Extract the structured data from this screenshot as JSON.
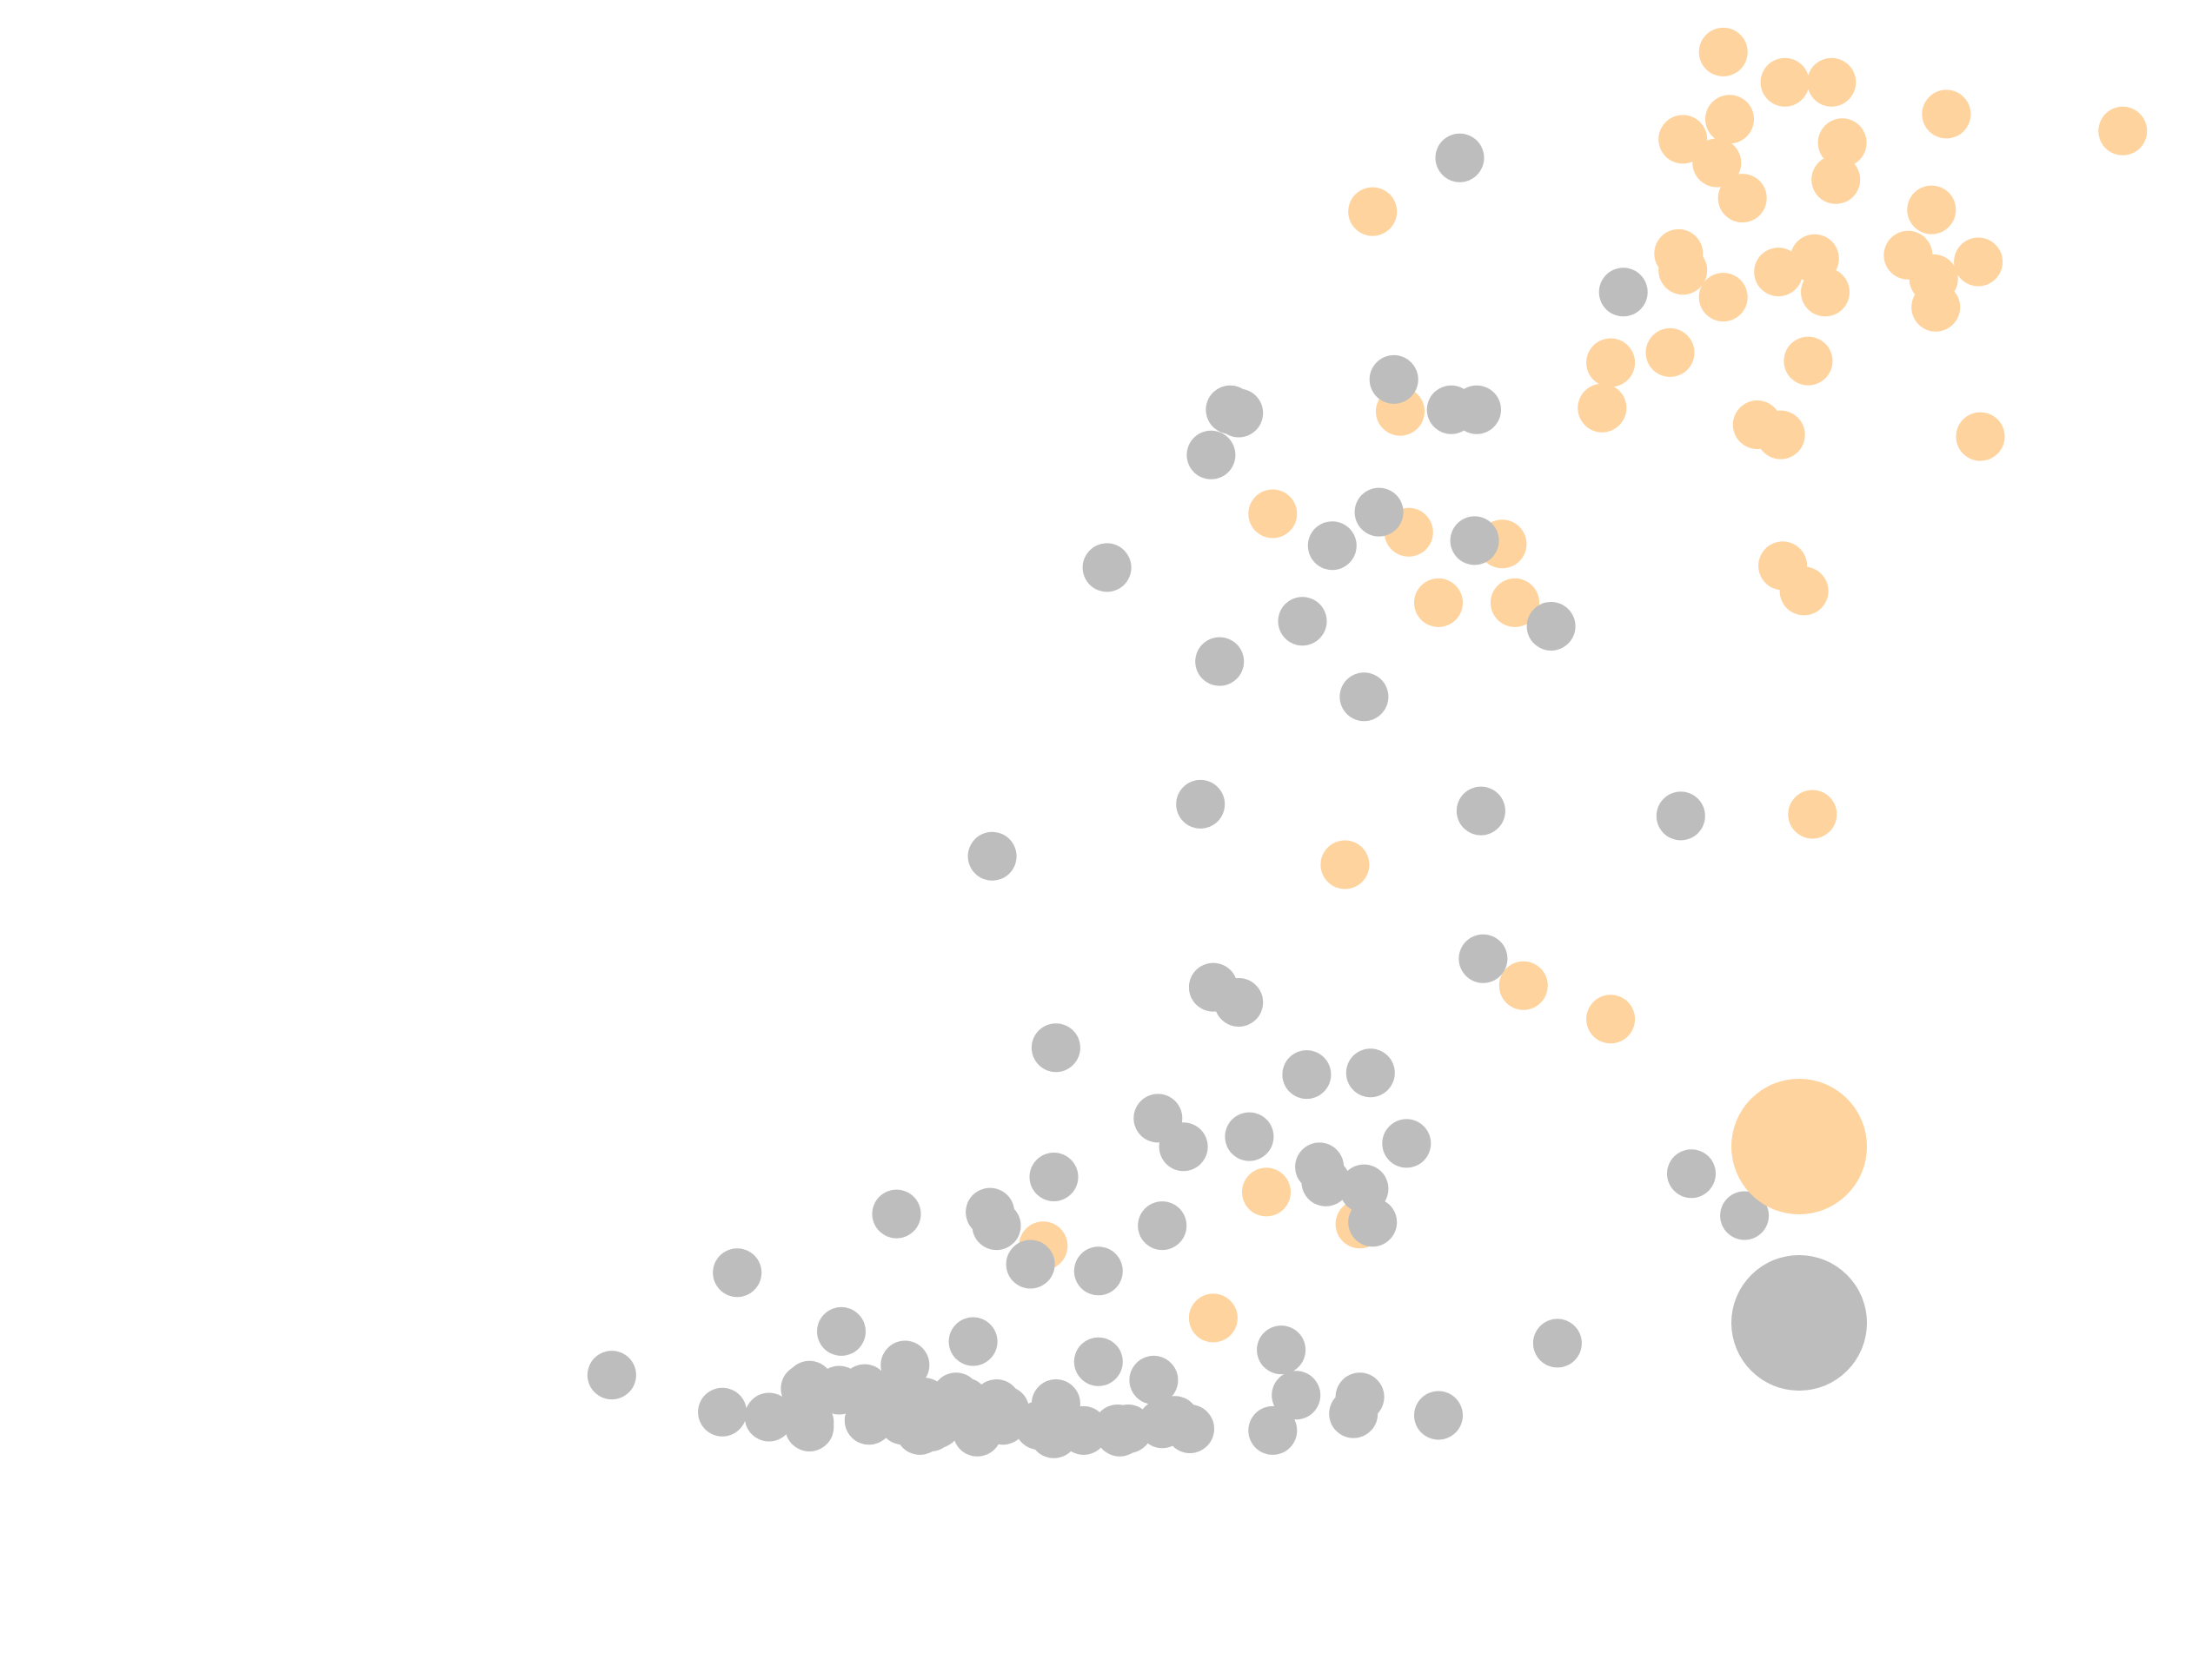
{
  "chart_data": {
    "type": "scatter",
    "title": "",
    "xlabel": "",
    "ylabel": "",
    "axes_visible": false,
    "grid": false,
    "xlim": [
      0,
      100
    ],
    "ylim": [
      0,
      100
    ],
    "legend": {
      "placement": "right",
      "markers": [
        {
          "color": "#fed39d"
        },
        {
          "color": "#bdbdbd"
        }
      ]
    },
    "series": [
      {
        "color": "#fed39d",
        "points": [
          [
            77.0,
            96.9
          ],
          [
            79.9,
            95.1
          ],
          [
            82.1,
            95.1
          ],
          [
            87.5,
            93.2
          ],
          [
            95.8,
            92.2
          ],
          [
            75.1,
            91.7
          ],
          [
            77.3,
            92.9
          ],
          [
            82.6,
            91.5
          ],
          [
            76.7,
            90.3
          ],
          [
            77.9,
            88.2
          ],
          [
            82.3,
            89.3
          ],
          [
            86.8,
            87.5
          ],
          [
            89.0,
            84.4
          ],
          [
            60.5,
            87.4
          ],
          [
            74.9,
            84.9
          ],
          [
            75.1,
            83.9
          ],
          [
            79.6,
            83.8
          ],
          [
            81.3,
            84.6
          ],
          [
            85.7,
            84.8
          ],
          [
            86.9,
            83.4
          ],
          [
            77.0,
            82.3
          ],
          [
            81.8,
            82.6
          ],
          [
            87.0,
            81.7
          ],
          [
            71.7,
            78.4
          ],
          [
            74.5,
            79.0
          ],
          [
            81.0,
            78.5
          ],
          [
            61.8,
            75.5
          ],
          [
            71.3,
            75.7
          ],
          [
            78.6,
            74.7
          ],
          [
            79.7,
            74.1
          ],
          [
            89.1,
            74.0
          ],
          [
            55.8,
            69.4
          ],
          [
            62.2,
            68.3
          ],
          [
            66.6,
            67.6
          ],
          [
            67.2,
            64.1
          ],
          [
            63.6,
            64.1
          ],
          [
            79.8,
            66.3
          ],
          [
            80.8,
            64.8
          ],
          [
            81.2,
            51.5
          ],
          [
            59.2,
            48.5
          ],
          [
            67.6,
            41.3
          ],
          [
            71.7,
            39.3
          ],
          [
            55.5,
            29.0
          ],
          [
            45.0,
            25.8
          ],
          [
            59.9,
            27.1
          ],
          [
            53.0,
            21.5
          ],
          [
            81.5,
            32.3
          ]
        ]
      },
      {
        "color": "#bdbdbd",
        "points": [
          [
            64.6,
            90.6
          ],
          [
            72.3,
            82.6
          ],
          [
            61.5,
            77.4
          ],
          [
            53.8,
            75.6
          ],
          [
            54.2,
            75.4
          ],
          [
            64.2,
            75.6
          ],
          [
            65.4,
            75.6
          ],
          [
            52.9,
            72.9
          ],
          [
            60.8,
            69.5
          ],
          [
            58.6,
            67.5
          ],
          [
            65.3,
            67.8
          ],
          [
            48.0,
            66.2
          ],
          [
            57.2,
            63.0
          ],
          [
            68.9,
            62.7
          ],
          [
            53.3,
            60.6
          ],
          [
            60.1,
            58.5
          ],
          [
            52.4,
            52.1
          ],
          [
            65.6,
            51.7
          ],
          [
            75.0,
            51.4
          ],
          [
            42.6,
            49.0
          ],
          [
            65.7,
            42.9
          ],
          [
            53.0,
            41.2
          ],
          [
            54.2,
            40.3
          ],
          [
            45.6,
            37.6
          ],
          [
            57.4,
            36.0
          ],
          [
            60.4,
            36.1
          ],
          [
            50.4,
            33.4
          ],
          [
            51.6,
            31.7
          ],
          [
            54.7,
            32.3
          ],
          [
            62.1,
            31.9
          ],
          [
            58.0,
            30.5
          ],
          [
            58.3,
            29.6
          ],
          [
            45.5,
            29.9
          ],
          [
            60.1,
            29.2
          ],
          [
            75.5,
            30.1
          ],
          [
            78.0,
            27.6
          ],
          [
            38.1,
            27.7
          ],
          [
            42.5,
            27.8
          ],
          [
            42.8,
            27.0
          ],
          [
            60.5,
            27.2
          ],
          [
            50.6,
            27.0
          ],
          [
            44.4,
            24.7
          ],
          [
            47.6,
            24.3
          ],
          [
            30.6,
            24.2
          ],
          [
            35.5,
            20.7
          ],
          [
            41.7,
            20.1
          ],
          [
            47.6,
            18.9
          ],
          [
            56.2,
            19.6
          ],
          [
            69.2,
            20.0
          ],
          [
            24.7,
            18.1
          ],
          [
            33.8,
            17.3
          ],
          [
            38.5,
            18.7
          ],
          [
            34.0,
            17.5
          ],
          [
            35.4,
            17.2
          ],
          [
            36.6,
            17.3
          ],
          [
            37.5,
            16.9
          ],
          [
            39.4,
            16.5
          ],
          [
            40.9,
            16.8
          ],
          [
            41.3,
            16.5
          ],
          [
            42.8,
            16.4
          ],
          [
            43.2,
            16.0
          ],
          [
            45.6,
            16.4
          ],
          [
            50.2,
            17.8
          ],
          [
            56.9,
            16.9
          ],
          [
            59.9,
            16.8
          ],
          [
            29.9,
            15.9
          ],
          [
            32.1,
            15.6
          ],
          [
            34.0,
            15.3
          ],
          [
            36.8,
            15.4
          ],
          [
            38.4,
            15.4
          ],
          [
            39.7,
            15.0
          ],
          [
            40.0,
            15.2
          ],
          [
            41.7,
            15.4
          ],
          [
            43.1,
            15.4
          ],
          [
            44.8,
            15.1
          ],
          [
            45.9,
            15.0
          ],
          [
            46.9,
            14.8
          ],
          [
            48.5,
            14.9
          ],
          [
            49.0,
            14.9
          ],
          [
            50.6,
            15.2
          ],
          [
            51.2,
            15.4
          ],
          [
            51.9,
            14.9
          ],
          [
            55.8,
            14.8
          ],
          [
            59.6,
            15.8
          ],
          [
            63.6,
            15.7
          ],
          [
            34.0,
            15.0
          ],
          [
            39.2,
            14.8
          ],
          [
            41.9,
            14.7
          ],
          [
            45.5,
            14.6
          ],
          [
            48.6,
            14.7
          ]
        ]
      }
    ]
  }
}
